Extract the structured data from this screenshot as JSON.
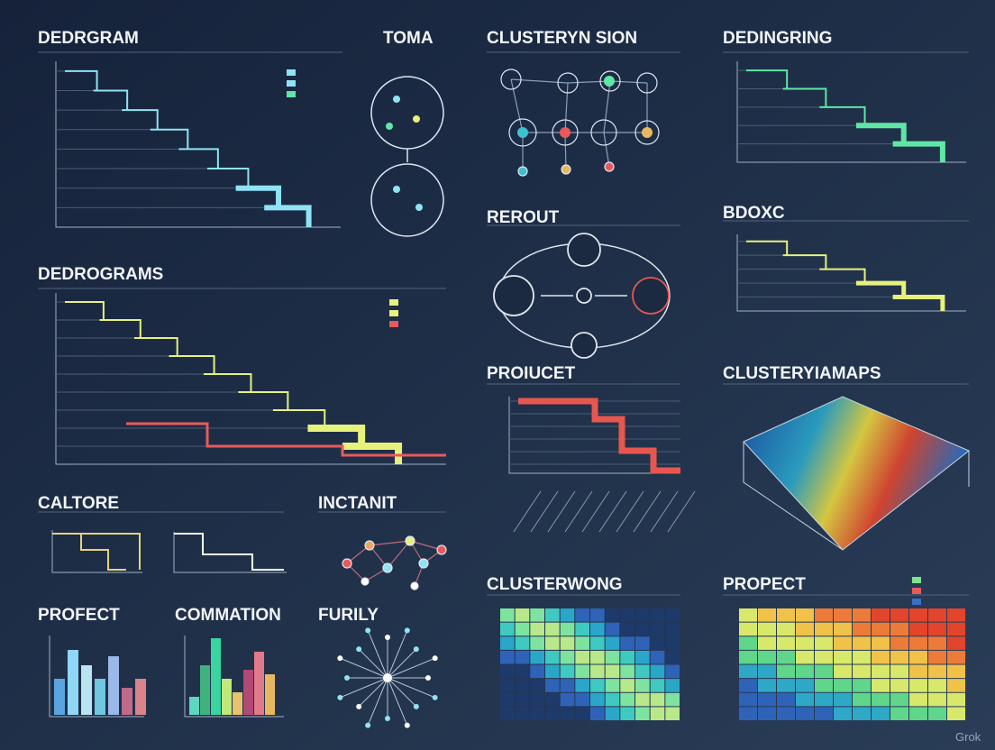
{
  "titles": [
    "DEDRGRAM",
    "TOMA",
    "CLUSTERYN SION",
    "DEDINGRING",
    "DEDROGRAMS",
    "REROUT",
    "BDOXC",
    "PROIUCET",
    "CLUSTERYIAMAPS",
    "CALTORE",
    "INCTANIT",
    "CLUSTERWONG",
    "PROPECT",
    "PROFECT",
    "COMMATION",
    "FURILY"
  ],
  "watermark": "Grok"
}
